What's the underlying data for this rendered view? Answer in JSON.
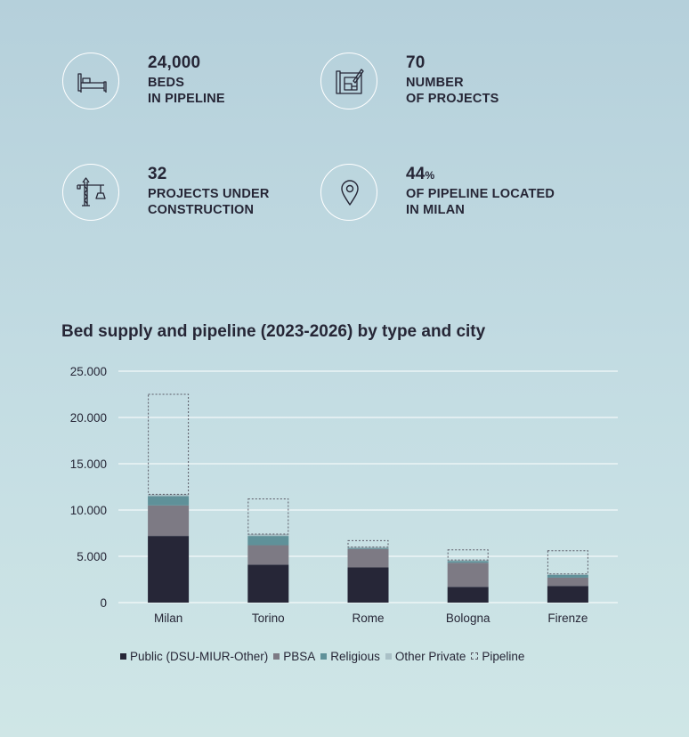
{
  "stats": [
    {
      "value": "24,000",
      "line1": "BEDS",
      "line2": "IN PIPELINE",
      "icon": "bed-icon"
    },
    {
      "value": "70",
      "line1": "NUMBER",
      "line2": "OF PROJECTS",
      "icon": "blueprint-icon"
    },
    {
      "value": "32",
      "line1": "PROJECTS UNDER",
      "line2": "CONSTRUCTION",
      "icon": "crane-icon"
    },
    {
      "value": "44",
      "unit": "%",
      "line1": "OF PIPELINE LOCATED",
      "line2": "IN MILAN",
      "icon": "location-pin-icon"
    }
  ],
  "chart_data": {
    "type": "bar",
    "stacked": true,
    "title": "Bed supply and pipeline (2023-2026) by type and city",
    "categories": [
      "Milan",
      "Torino",
      "Rome",
      "Bologna",
      "Firenze"
    ],
    "series": [
      {
        "name": "Public (DSU-MIUR-Other)",
        "values": [
          7200,
          4100,
          3800,
          1700,
          1800
        ],
        "color": "#262637"
      },
      {
        "name": "PBSA",
        "values": [
          3300,
          2100,
          2000,
          2600,
          900
        ],
        "color": "#7d7a84"
      },
      {
        "name": "Religious",
        "values": [
          1000,
          1000,
          100,
          200,
          300
        ],
        "color": "#5f9199"
      },
      {
        "name": "Other Private",
        "values": [
          200,
          200,
          100,
          100,
          100
        ],
        "color": "#a9c0c6"
      },
      {
        "name": "Pipeline",
        "values": [
          10800,
          3800,
          700,
          1100,
          2500
        ],
        "color": "none",
        "dashed": true
      }
    ],
    "ylim": [
      0,
      25000
    ],
    "yticks": [
      "0",
      "5.000",
      "10.000",
      "15.000",
      "20.000",
      "25.000"
    ],
    "ytick_values": [
      0,
      5000,
      10000,
      15000,
      20000,
      25000
    ],
    "grid": true,
    "legend": "bottom"
  }
}
